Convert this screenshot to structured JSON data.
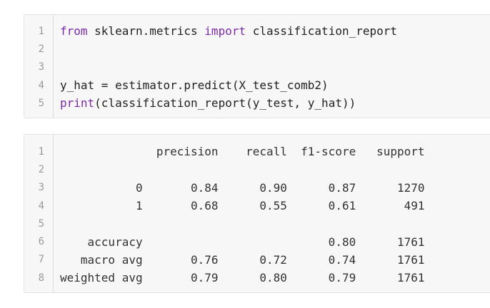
{
  "code_cell": {
    "colors": {
      "keyword": "#7a2aa6",
      "text": "#222222",
      "line_number": "#9a9a9a",
      "background": "#f7f7f7"
    },
    "lines": [
      {
        "num": "1",
        "tokens": [
          {
            "t": "from",
            "k": "kw"
          },
          {
            "t": " sklearn.metrics ",
            "k": ""
          },
          {
            "t": "import",
            "k": "kw"
          },
          {
            "t": " classification_report",
            "k": ""
          }
        ]
      },
      {
        "num": "2",
        "tokens": []
      },
      {
        "num": "3",
        "tokens": []
      },
      {
        "num": "4",
        "tokens": [
          {
            "t": "y_hat = estimator.predict(X_test_comb2)",
            "k": ""
          }
        ]
      },
      {
        "num": "5",
        "tokens": [
          {
            "t": "print",
            "k": "fn"
          },
          {
            "t": "(classification_report(y_test, y_hat))",
            "k": ""
          }
        ]
      }
    ]
  },
  "output_cell": {
    "lines": [
      {
        "num": "1",
        "text": "              precision    recall  f1-score   support"
      },
      {
        "num": "2",
        "text": ""
      },
      {
        "num": "3",
        "text": "           0       0.84      0.90      0.87      1270"
      },
      {
        "num": "4",
        "text": "           1       0.68      0.55      0.61       491"
      },
      {
        "num": "5",
        "text": ""
      },
      {
        "num": "6",
        "text": "    accuracy                           0.80      1761"
      },
      {
        "num": "7",
        "text": "   macro avg       0.76      0.72      0.74      1761"
      },
      {
        "num": "8",
        "text": "weighted avg       0.79      0.80      0.79      1761"
      }
    ]
  }
}
